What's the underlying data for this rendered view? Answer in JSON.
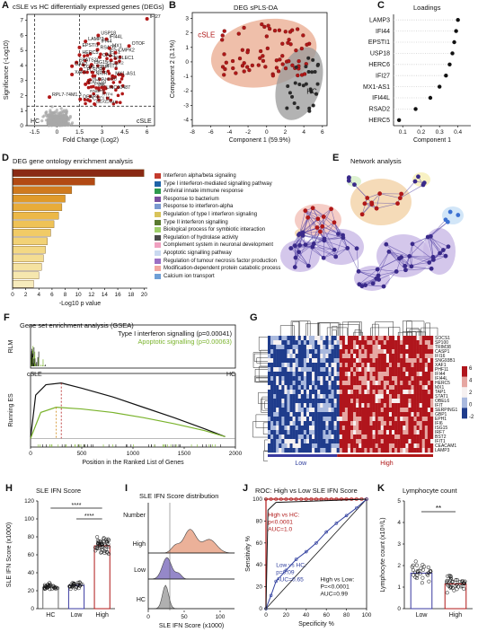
{
  "panels": {
    "A": {
      "letter": "A",
      "title": "cSLE vs HC differentially expressed genes (DEGs)"
    },
    "B": {
      "letter": "B",
      "title": "DEG sPLS-DA"
    },
    "C": {
      "letter": "C",
      "title": "Loadings"
    },
    "D": {
      "letter": "D",
      "title": "DEG gene ontology enrichment analysis"
    },
    "E": {
      "letter": "E",
      "title": "Network analysis"
    },
    "F": {
      "letter": "F",
      "title": "Gene set enrichment analysis (GSEA)"
    },
    "G": {
      "letter": "G"
    },
    "H": {
      "letter": "H",
      "title": "SLE IFN Score"
    },
    "I": {
      "letter": "I",
      "title": "SLE IFN Score distribution"
    },
    "J": {
      "letter": "J",
      "title": "ROC: High vs Low SLE IFN Score"
    },
    "K": {
      "letter": "K",
      "title": "Lymphocyte count"
    }
  },
  "colors": {
    "red": "#b01818",
    "grey": "#a8a8a8",
    "salmon": "#e9a98e",
    "purple": "#8a7cc4",
    "navy": "#3a3c8a",
    "green": "#7ab32c"
  },
  "chart_data": [
    {
      "panel": "A",
      "type": "scatter",
      "xlabel": "Fold Change (Log2)",
      "ylabel": "Significance (-Log10)",
      "xticks": [
        "-1.5",
        "0",
        "1.5",
        "3",
        "4.5",
        "6"
      ],
      "yticks": [
        "0",
        "1",
        "2",
        "3",
        "4",
        "5",
        "6",
        "7"
      ],
      "xlim": [
        -2,
        6.5
      ],
      "ylim": [
        0,
        7.4
      ],
      "region_labels": {
        "left": "HC",
        "right": "cSLE"
      },
      "genes": [
        {
          "name": "IFI27",
          "x": 6.0,
          "y": 7.1
        },
        {
          "name": "USP18",
          "x": 2.75,
          "y": 6.0
        },
        {
          "name": "IFI44L",
          "x": 3.3,
          "y": 5.75
        },
        {
          "name": "LAMP3",
          "x": 1.9,
          "y": 5.6
        },
        {
          "name": "IFI44",
          "x": 2.75,
          "y": 5.45
        },
        {
          "name": "OTOF",
          "x": 4.8,
          "y": 5.3
        },
        {
          "name": "EPSTI1",
          "x": 1.5,
          "y": 5.2
        },
        {
          "name": "RSAD2",
          "x": 2.7,
          "y": 5.05
        },
        {
          "name": "MX1",
          "x": 3.5,
          "y": 5.15
        },
        {
          "name": "IFIT1",
          "x": 3.3,
          "y": 4.75
        },
        {
          "name": "CMPK2",
          "x": 3.9,
          "y": 4.85
        },
        {
          "name": "HERC5",
          "x": 1.5,
          "y": 4.7
        },
        {
          "name": "OAS3",
          "x": 2.85,
          "y": 4.55
        },
        {
          "name": "SIGLEC1",
          "x": 3.6,
          "y": 4.35
        },
        {
          "name": "SPATS2L",
          "x": 1.3,
          "y": 4.2
        },
        {
          "name": "ISG15",
          "x": 2.3,
          "y": 4.05
        },
        {
          "name": "OAS2",
          "x": 1.0,
          "y": 3.95
        },
        {
          "name": "IFIT3",
          "x": 3.1,
          "y": 3.8
        },
        {
          "name": "LGALS3BP",
          "x": 1.6,
          "y": 3.75
        },
        {
          "name": "PLSCR1",
          "x": 1.8,
          "y": 3.55
        },
        {
          "name": "XAF1",
          "x": 1.0,
          "y": 3.4
        },
        {
          "name": "NRIR",
          "x": 2.4,
          "y": 3.3
        },
        {
          "name": "MX1-AS1",
          "x": 3.7,
          "y": 3.3
        },
        {
          "name": "CXCL10",
          "x": 1.9,
          "y": 2.75
        },
        {
          "name": "LINC00487",
          "x": 3.1,
          "y": 2.4
        },
        {
          "name": "RPL7-74M1.3",
          "x": -0.5,
          "y": 1.9
        },
        {
          "name": "DEAPT",
          "x": 1.55,
          "y": 1.75
        },
        {
          "name": "CXCL11",
          "x": 2.2,
          "y": 1.65
        }
      ],
      "extra_labels": [
        "HLDC",
        "EIF2AK2",
        "RTP4",
        "LY6E",
        "RNBP2",
        "IFI6",
        "ANKRD",
        "CEACAM1"
      ]
    },
    {
      "panel": "B",
      "type": "scatter",
      "xlabel": "Component 1 (59.9%)",
      "ylabel": "Component 2 (3.1%)",
      "xticks": [
        "-8",
        "-6",
        "-4",
        "-2",
        "0",
        "2",
        "4",
        "6"
      ],
      "yticks": [
        "-4",
        "-3",
        "-2",
        "-1",
        "0",
        "1",
        "2",
        "3"
      ],
      "xlim": [
        -8,
        6.5
      ],
      "ylim": [
        -4.4,
        3.4
      ],
      "groups": [
        {
          "name": "cSLE",
          "color": "#b01818"
        },
        {
          "name": "HC",
          "color": "#303030"
        }
      ]
    },
    {
      "panel": "C",
      "type": "lollipop",
      "xlabel": "Component 1",
      "xticks": [
        "0.1",
        "0.2",
        "0.3",
        "0.4"
      ],
      "xlim": [
        0.05,
        0.47
      ],
      "categories": [
        "LAMP3",
        "IFI44",
        "EPSTI1",
        "USP18",
        "HERC6",
        "IFI27",
        "MX1-AS1",
        "IFI44L",
        "RSAD2",
        "HERC5"
      ],
      "values": [
        0.4,
        0.39,
        0.38,
        0.37,
        0.355,
        0.335,
        0.3,
        0.25,
        0.17,
        0.08
      ]
    },
    {
      "panel": "D",
      "type": "bar",
      "xlabel": "-Log10 p value",
      "xticks": [
        "0",
        "2",
        "4",
        "6",
        "8",
        "10",
        "12",
        "14",
        "16",
        "18",
        "20"
      ],
      "xlim": [
        0,
        20.5
      ],
      "categories": [
        "Interferon alpha/beta signaling",
        "Type I interferon-mediated signalling pathway",
        "Antiviral innate immune response",
        "Response to bacterium",
        "Response to interferon-alpha",
        "Regulation of type I interferon signaling",
        "Type II interferon signalling",
        "Biological process for symbiotic interaction",
        "Regulation of hydrolase activity",
        "Complement system in neuronal development",
        "Apoptotic signalling pathway",
        "Regulation of tumour necrosis factor production",
        "Modification-dependent protein catabolic process",
        "Calcium ion transport"
      ],
      "values": [
        20,
        12.5,
        9,
        8,
        7.5,
        7,
        6.3,
        5.8,
        5.3,
        5.0,
        4.7,
        4.4,
        4.0,
        3.2
      ],
      "legend_colors": [
        "#c43b2d",
        "#1f63a8",
        "#2f9a4e",
        "#7a4fa0",
        "#7a9ad0",
        "#d8c35a",
        "#5a7a30",
        "#9fcf6a",
        "#4a4a4a",
        "#f0a0c0",
        "#c9d9f0",
        "#9b6fc4",
        "#f2a7a0",
        "#6f9fd6"
      ]
    },
    {
      "panel": "F",
      "type": "line",
      "xlabel": "Position in the Ranked List of Genes",
      "ylabel_top": "RLM",
      "ylabel_bottom": "Running ES",
      "xticks": [
        "0",
        "500",
        "1000",
        "1500",
        "2000"
      ],
      "xlim": [
        0,
        2000
      ],
      "series": [
        {
          "name": "Type I interferon signalling (p=0.00041)",
          "color": "#111111",
          "x": [
            0,
            50,
            150,
            300,
            500,
            800,
            1100,
            1400,
            1700,
            1900
          ],
          "y": [
            0,
            0.5,
            0.62,
            0.64,
            0.58,
            0.48,
            0.36,
            0.24,
            0.11,
            0.02
          ]
        },
        {
          "name": "Apoptotic signalling (p=0.00063)",
          "color": "#7ab32c",
          "x": [
            0,
            100,
            250,
            500,
            800,
            1100,
            1400,
            1700,
            1900
          ],
          "y": [
            0,
            0.3,
            0.36,
            0.34,
            0.3,
            0.24,
            0.17,
            0.09,
            0.02
          ]
        }
      ],
      "end_labels": {
        "left": "cSLE",
        "right": "HC"
      }
    },
    {
      "panel": "G",
      "type": "heatmap",
      "row_labels": [
        "SOCS1",
        "SP100",
        "TRIM38",
        "CASP1",
        "IFI16",
        "SNG93B1",
        "XAF1",
        "PHF11",
        "IFI44",
        "IFI44L",
        "HERC5",
        "MX1",
        "TAP1",
        "STAT1",
        "OBEL6",
        "IFIT",
        "SERPING1",
        "GBP1",
        "EPH1",
        "IFI6",
        "ISG15",
        "IRF7",
        "BST2",
        "IFIT1",
        "CEACAM1",
        "LAMP3"
      ],
      "legend_ticks": [
        "6",
        "4",
        "2",
        "0",
        "-2"
      ],
      "group_labels": [
        "Low",
        "High"
      ]
    },
    {
      "panel": "H",
      "type": "bar",
      "ylabel": "SLE IFN Score (x1000)",
      "categories": [
        "HC",
        "Low",
        "High"
      ],
      "values": [
        24,
        26,
        70
      ],
      "yticks": [
        "0",
        "20",
        "40",
        "60",
        "80",
        "100",
        "120"
      ],
      "ylim": [
        0,
        120
      ],
      "significance": [
        "****",
        "****"
      ]
    },
    {
      "panel": "I",
      "type": "area",
      "xlabel": "SLE IFN Score (x1000)",
      "ylabel": "Number",
      "xticks": [
        "0",
        "50",
        "100"
      ],
      "xlim": [
        0,
        120
      ],
      "series": [
        {
          "name": "High",
          "color": "#e9a98e"
        },
        {
          "name": "Low",
          "color": "#8a7cc4"
        },
        {
          "name": "HC",
          "color": "#a8a8a8"
        }
      ]
    },
    {
      "panel": "J",
      "type": "line",
      "xlabel": "Specificity %",
      "ylabel": "Sensitivity %",
      "xticks": [
        "0",
        "20",
        "40",
        "60",
        "80",
        "100"
      ],
      "yticks": [
        "0",
        "20",
        "40",
        "60",
        "80",
        "100"
      ],
      "xlim": [
        0,
        100
      ],
      "ylim": [
        0,
        100
      ],
      "annotations": [
        {
          "lines": [
            "High vs HC:",
            "p<0.0001",
            "AUC=1.0"
          ],
          "color": "#b01818"
        },
        {
          "lines": [
            "Low vs HC:",
            "p=0.09",
            "AUC=0.65"
          ],
          "color": "#2f3e9e"
        },
        {
          "lines": [
            "High vs Low:",
            "P=<0.0001",
            "AUC=0.99"
          ],
          "color": "#111111"
        }
      ]
    },
    {
      "panel": "K",
      "type": "bar",
      "ylabel": "Lymphocyte count (x10⁹/L)",
      "categories": [
        "Low",
        "High"
      ],
      "values": [
        1.65,
        1.15
      ],
      "yticks": [
        "0",
        "1",
        "2",
        "3",
        "4",
        "5"
      ],
      "ylim": [
        0,
        5
      ],
      "significance": [
        "**"
      ]
    }
  ]
}
